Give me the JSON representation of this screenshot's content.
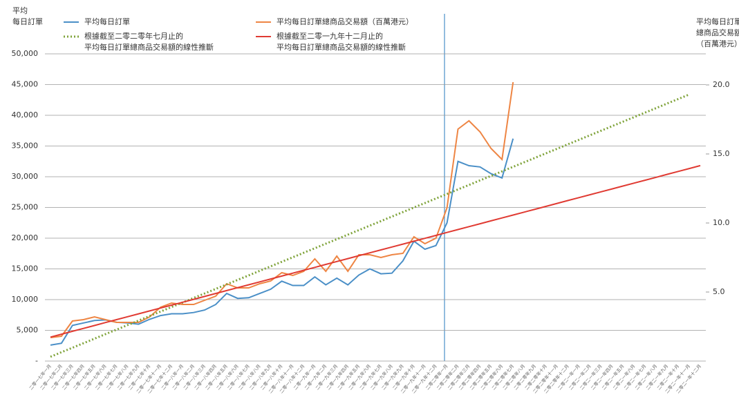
{
  "chart_data": {
    "type": "line",
    "y_title": "平均\n每日訂單",
    "y2_title": "平均每日訂單\n總商品交易額\n（百萬港元）",
    "categories": [
      "二零一七年一月",
      "二零一七年二月",
      "二零一七年三月",
      "二零一七年四月",
      "二零一七年五月",
      "二零一七年六月",
      "二零一七年七月",
      "二零一七年八月",
      "二零一七年九月",
      "二零一七年十月",
      "二零一七年十一月",
      "二零一七年十二月",
      "二零一八年一月",
      "二零一八年二月",
      "二零一八年三月",
      "二零一八年四月",
      "二零一八年五月",
      "二零一八年六月",
      "二零一八年七月",
      "二零一八年八月",
      "二零一八年九月",
      "二零一八年十月",
      "二零一八年十一月",
      "二零一八年十二月",
      "二零一九年一月",
      "二零一九年二月",
      "二零一九年三月",
      "二零一九年四月",
      "二零一九年五月",
      "二零一九年六月",
      "二零一九年七月",
      "二零一九年八月",
      "二零一九年九月",
      "二零一九年十月",
      "二零一九年十一月",
      "二零一九年十二月",
      "二零二零年一月",
      "二零二零年二月",
      "二零二零年三月",
      "二零二零年四月",
      "二零二零年五月",
      "二零二零年六月",
      "二零二零年七月",
      "二零二零年八月",
      "二零二零年九月",
      "二零二零年十月",
      "二零二零年十一月",
      "二零二零年十二月",
      "二零二一年一月",
      "二零二一年二月",
      "二零二一年三月",
      "二零二一年四月",
      "二零二一年五月",
      "二零二一年六月",
      "二零二一年七月",
      "二零二一年八月",
      "二零二一年九月",
      "二零二一年十月",
      "二零二一年十一月",
      "二零二一年十二月"
    ],
    "series": [
      {
        "name": "平均每日訂單",
        "color": "#4a8fc7",
        "style": "solid",
        "values": [
          2600,
          2900,
          5800,
          6200,
          6600,
          6700,
          6300,
          6200,
          6000,
          6800,
          7400,
          7700,
          7700,
          7900,
          8300,
          9200,
          11000,
          10200,
          10300,
          11000,
          11700,
          13000,
          12300,
          12300,
          13700,
          12400,
          13500,
          12400,
          14000,
          15000,
          14200,
          14300,
          16300,
          19500,
          18200,
          18800,
          22500,
          32500,
          31800,
          31600,
          30500,
          29800,
          36200,
          null,
          null,
          null,
          null,
          null,
          null,
          null,
          null,
          null,
          null,
          null,
          null,
          null,
          null,
          null,
          null,
          null
        ]
      },
      {
        "name": "平均每日訂單總商品交易額（百萬港元）",
        "color": "#ee8543",
        "style": "solid",
        "axis": "y2",
        "values": [
          1.7,
          1.8,
          2.9,
          3.0,
          3.2,
          3.0,
          2.8,
          2.8,
          2.8,
          3.2,
          3.9,
          4.2,
          4.1,
          4.1,
          4.4,
          4.7,
          5.6,
          5.3,
          5.3,
          5.6,
          5.8,
          6.4,
          6.2,
          6.5,
          7.4,
          6.5,
          7.6,
          6.5,
          7.7,
          7.7,
          7.5,
          7.7,
          7.8,
          9.0,
          8.5,
          8.9,
          11.1,
          16.8,
          17.4,
          16.6,
          15.4,
          14.6,
          20.2,
          null,
          null,
          null,
          null,
          null,
          null,
          null,
          null,
          null,
          null,
          null,
          null,
          null,
          null,
          null,
          null,
          null
        ]
      },
      {
        "name": "根據截至二零二零年七月止的\n平均每日訂單總商品交易額的線性推斷",
        "color": "#7fa33a",
        "style": "dotted",
        "values": [
          700,
          1436,
          2172,
          2908,
          3644,
          4380,
          5116,
          5852,
          6588,
          7324,
          8060,
          8796,
          9532,
          10268,
          11004,
          11740,
          12476,
          13212,
          13948,
          14684,
          15420,
          16156,
          16892,
          17628,
          18364,
          19100,
          19836,
          20572,
          21308,
          22044,
          22780,
          23516,
          24252,
          24988,
          25724,
          26460,
          27196,
          27932,
          28668,
          29404,
          30140,
          30876,
          31612,
          32348,
          33084,
          33820,
          34556,
          35292,
          36028,
          36764,
          37500,
          38236,
          38972,
          39708,
          40444,
          41180,
          41916,
          42652,
          43388,
          null
        ]
      },
      {
        "name": "根據截至二零一九年十二月止的\n平均每日訂單總商品交易額的線性推斷",
        "color": "#e03a32",
        "style": "solid",
        "values": [
          3900,
          4373,
          4846,
          5319,
          5792,
          6265,
          6738,
          7211,
          7684,
          8157,
          8630,
          9103,
          9576,
          10049,
          10522,
          10995,
          11468,
          11941,
          12414,
          12887,
          13360,
          13833,
          14306,
          14779,
          15252,
          15725,
          16198,
          16671,
          17144,
          17617,
          18090,
          18563,
          19036,
          19509,
          19982,
          20455,
          20928,
          21401,
          21874,
          22347,
          22820,
          23293,
          23766,
          24239,
          24712,
          25185,
          25658,
          26131,
          26604,
          27077,
          27550,
          28023,
          28496,
          28969,
          29442,
          29915,
          30388,
          30861,
          31334,
          31807
        ]
      }
    ],
    "ylim": [
      0,
      50000
    ],
    "yticks": [
      {
        "value": 0,
        "label": "-"
      },
      {
        "value": 5000,
        "label": "5,000"
      },
      {
        "value": 10000,
        "label": "10,000"
      },
      {
        "value": 15000,
        "label": "15,000"
      },
      {
        "value": 20000,
        "label": "20,000"
      },
      {
        "value": 25000,
        "label": "25,000"
      },
      {
        "value": 30000,
        "label": "30,000"
      },
      {
        "value": 35000,
        "label": "35,000"
      },
      {
        "value": 40000,
        "label": "40,000"
      },
      {
        "value": 45000,
        "label": "45,000"
      },
      {
        "value": 50000,
        "label": "50,000"
      }
    ],
    "y2lim": [
      0,
      22.25
    ],
    "y2ticks": [
      {
        "value": 5,
        "label": "5.0"
      },
      {
        "value": 10,
        "label": "10.0"
      },
      {
        "value": 15,
        "label": "15.0"
      },
      {
        "value": 20,
        "label": "20.0"
      }
    ],
    "grid": true
  }
}
